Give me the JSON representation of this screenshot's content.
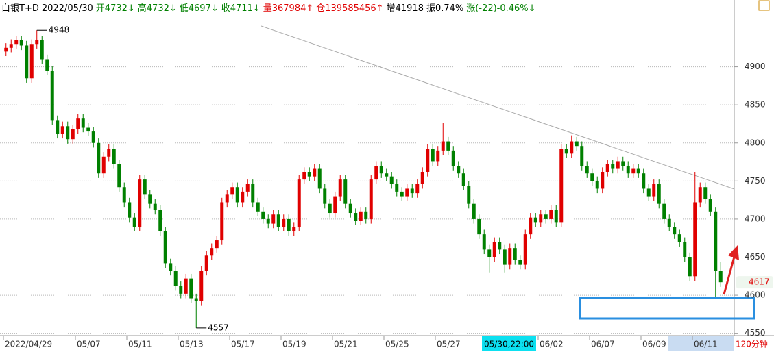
{
  "chart_data": {
    "type": "candlestick",
    "title": "白银T+D",
    "date": "2022/05/30",
    "header_items": [
      {
        "text": "开4732↓",
        "color": "#008000"
      },
      {
        "text": "高4732↓",
        "color": "#008000"
      },
      {
        "text": "低4697↓",
        "color": "#008000"
      },
      {
        "text": "收4711↓",
        "color": "#008000"
      },
      {
        "text": "量367984↑",
        "color": "#e00000"
      },
      {
        "text": "仓139585456↑",
        "color": "#e00000"
      },
      {
        "text": "增41918",
        "color": "#000000"
      },
      {
        "text": "振0.74%",
        "color": "#000000"
      },
      {
        "text": "涨(-22)-0.46%↓",
        "color": "#008000"
      }
    ],
    "up_color": "#e00000",
    "down_color": "#008000",
    "ylim": [
      4547,
      4968
    ],
    "yticks": [
      4550,
      4600,
      4650,
      4700,
      4750,
      4800,
      4850,
      4900
    ],
    "grid": true,
    "high_label": 4948,
    "low_label": 4557,
    "last_price": 4617,
    "crosshair_label": "05/30,22:00",
    "period": "120分钟",
    "categories": [
      "2022/04/29",
      null,
      null,
      null,
      null,
      null,
      null,
      null,
      null,
      null,
      null,
      null,
      null,
      null,
      "05/07",
      null,
      null,
      null,
      null,
      null,
      null,
      null,
      null,
      null,
      "05/11",
      null,
      null,
      null,
      null,
      null,
      null,
      null,
      null,
      null,
      "05/13",
      null,
      null,
      null,
      null,
      null,
      null,
      null,
      null,
      null,
      "05/17",
      null,
      null,
      null,
      null,
      null,
      null,
      null,
      null,
      null,
      "05/19",
      null,
      null,
      null,
      null,
      null,
      null,
      null,
      null,
      null,
      "05/21",
      null,
      null,
      null,
      null,
      null,
      null,
      null,
      null,
      null,
      "05/25",
      null,
      null,
      null,
      null,
      null,
      null,
      null,
      null,
      null,
      "05/27",
      null,
      null,
      null,
      null,
      null,
      null,
      null,
      null,
      null,
      null,
      null,
      null,
      null,
      null,
      null,
      null,
      null,
      null,
      null,
      "06/02",
      null,
      null,
      null,
      null,
      null,
      null,
      null,
      null,
      null,
      "06/07",
      null,
      null,
      null,
      null,
      null,
      null,
      null,
      null,
      null,
      "06/09",
      null,
      null,
      null,
      null,
      null,
      null,
      null,
      null,
      null,
      "06/11",
      null,
      null,
      null,
      null,
      null
    ],
    "ohlc": [
      [
        4920,
        4931,
        4914,
        4925
      ],
      [
        4925,
        4936,
        4919,
        4930
      ],
      [
        4930,
        4941,
        4924,
        4935
      ],
      [
        4935,
        4941,
        4922,
        4928
      ],
      [
        4928,
        4934,
        4879,
        4885
      ],
      [
        4885,
        4936,
        4879,
        4930
      ],
      [
        4930,
        4948,
        4924,
        4935
      ],
      [
        4935,
        4941,
        4904,
        4910
      ],
      [
        4910,
        4916,
        4889,
        4895
      ],
      [
        4895,
        4901,
        4824,
        4830
      ],
      [
        4830,
        4836,
        4806,
        4812
      ],
      [
        4812,
        4828,
        4806,
        4822
      ],
      [
        4822,
        4828,
        4799,
        4805
      ],
      [
        4805,
        4824,
        4799,
        4818
      ],
      [
        4818,
        4838,
        4812,
        4832
      ],
      [
        4832,
        4838,
        4814,
        4820
      ],
      [
        4820,
        4826,
        4809,
        4815
      ],
      [
        4815,
        4821,
        4794,
        4800
      ],
      [
        4800,
        4806,
        4754,
        4760
      ],
      [
        4760,
        4788,
        4754,
        4782
      ],
      [
        4782,
        4798,
        4776,
        4792
      ],
      [
        4792,
        4798,
        4766,
        4772
      ],
      [
        4772,
        4778,
        4736,
        4742
      ],
      [
        4742,
        4748,
        4716,
        4722
      ],
      [
        4722,
        4728,
        4696,
        4702
      ],
      [
        4702,
        4708,
        4684,
        4690
      ],
      [
        4690,
        4758,
        4684,
        4752
      ],
      [
        4752,
        4758,
        4726,
        4732
      ],
      [
        4732,
        4738,
        4714,
        4720
      ],
      [
        4720,
        4726,
        4706,
        4712
      ],
      [
        4712,
        4718,
        4678,
        4684
      ],
      [
        4684,
        4690,
        4636,
        4642
      ],
      [
        4642,
        4648,
        4626,
        4632
      ],
      [
        4632,
        4638,
        4606,
        4612
      ],
      [
        4612,
        4618,
        4596,
        4602
      ],
      [
        4602,
        4628,
        4596,
        4622
      ],
      [
        4622,
        4628,
        4590,
        4596
      ],
      [
        4596,
        4602,
        4557,
        4592
      ],
      [
        4592,
        4638,
        4586,
        4632
      ],
      [
        4632,
        4658,
        4626,
        4652
      ],
      [
        4652,
        4668,
        4646,
        4662
      ],
      [
        4662,
        4678,
        4656,
        4672
      ],
      [
        4672,
        4728,
        4666,
        4722
      ],
      [
        4722,
        4738,
        4716,
        4732
      ],
      [
        4732,
        4748,
        4726,
        4742
      ],
      [
        4742,
        4748,
        4716,
        4722
      ],
      [
        4722,
        4742,
        4716,
        4736
      ],
      [
        4736,
        4752,
        4730,
        4746
      ],
      [
        4746,
        4752,
        4716,
        4722
      ],
      [
        4722,
        4728,
        4704,
        4710
      ],
      [
        4710,
        4716,
        4694,
        4700
      ],
      [
        4700,
        4706,
        4688,
        4694
      ],
      [
        4694,
        4712,
        4688,
        4706
      ],
      [
        4706,
        4712,
        4684,
        4690
      ],
      [
        4690,
        4706,
        4684,
        4700
      ],
      [
        4700,
        4706,
        4678,
        4684
      ],
      [
        4684,
        4696,
        4678,
        4690
      ],
      [
        4690,
        4758,
        4684,
        4752
      ],
      [
        4752,
        4768,
        4746,
        4762
      ],
      [
        4762,
        4768,
        4750,
        4756
      ],
      [
        4756,
        4772,
        4750,
        4766
      ],
      [
        4766,
        4772,
        4734,
        4740
      ],
      [
        4740,
        4746,
        4714,
        4720
      ],
      [
        4720,
        4726,
        4702,
        4708
      ],
      [
        4708,
        4736,
        4702,
        4730
      ],
      [
        4730,
        4758,
        4724,
        4752
      ],
      [
        4752,
        4758,
        4714,
        4720
      ],
      [
        4720,
        4726,
        4702,
        4708
      ],
      [
        4708,
        4714,
        4692,
        4698
      ],
      [
        4698,
        4716,
        4692,
        4710
      ],
      [
        4710,
        4716,
        4694,
        4700
      ],
      [
        4700,
        4758,
        4694,
        4752
      ],
      [
        4752,
        4776,
        4746,
        4770
      ],
      [
        4770,
        4776,
        4754,
        4760
      ],
      [
        4760,
        4766,
        4750,
        4756
      ],
      [
        4756,
        4762,
        4740,
        4746
      ],
      [
        4746,
        4752,
        4730,
        4736
      ],
      [
        4736,
        4742,
        4724,
        4730
      ],
      [
        4730,
        4746,
        4724,
        4740
      ],
      [
        4740,
        4746,
        4728,
        4734
      ],
      [
        4734,
        4752,
        4728,
        4746
      ],
      [
        4746,
        4768,
        4740,
        4762
      ],
      [
        4762,
        4798,
        4756,
        4792
      ],
      [
        4792,
        4798,
        4770,
        4776
      ],
      [
        4776,
        4796,
        4770,
        4790
      ],
      [
        4790,
        4826,
        4784,
        4802
      ],
      [
        4802,
        4808,
        4784,
        4790
      ],
      [
        4790,
        4796,
        4764,
        4770
      ],
      [
        4770,
        4776,
        4754,
        4760
      ],
      [
        4760,
        4766,
        4738,
        4744
      ],
      [
        4744,
        4750,
        4714,
        4720
      ],
      [
        4720,
        4726,
        4694,
        4700
      ],
      [
        4700,
        4706,
        4674,
        4680
      ],
      [
        4680,
        4686,
        4654,
        4660
      ],
      [
        4660,
        4666,
        4630,
        4650
      ],
      [
        4650,
        4676,
        4644,
        4670
      ],
      [
        4670,
        4676,
        4654,
        4660
      ],
      [
        4660,
        4666,
        4630,
        4640
      ],
      [
        4640,
        4668,
        4634,
        4662
      ],
      [
        4662,
        4668,
        4640,
        4646
      ],
      [
        4646,
        4652,
        4634,
        4640
      ],
      [
        4640,
        4686,
        4634,
        4680
      ],
      [
        4680,
        4708,
        4674,
        4702
      ],
      [
        4702,
        4708,
        4690,
        4696
      ],
      [
        4696,
        4712,
        4690,
        4706
      ],
      [
        4706,
        4712,
        4694,
        4700
      ],
      [
        4700,
        4718,
        4694,
        4712
      ],
      [
        4712,
        4718,
        4690,
        4696
      ],
      [
        4696,
        4798,
        4690,
        4792
      ],
      [
        4792,
        4798,
        4780,
        4786
      ],
      [
        4786,
        4810,
        4780,
        4802
      ],
      [
        4802,
        4808,
        4790,
        4796
      ],
      [
        4796,
        4802,
        4764,
        4770
      ],
      [
        4770,
        4776,
        4754,
        4760
      ],
      [
        4760,
        4766,
        4744,
        4750
      ],
      [
        4750,
        4756,
        4734,
        4740
      ],
      [
        4740,
        4768,
        4734,
        4762
      ],
      [
        4762,
        4778,
        4756,
        4772
      ],
      [
        4772,
        4778,
        4760,
        4766
      ],
      [
        4766,
        4782,
        4760,
        4776
      ],
      [
        4776,
        4782,
        4764,
        4770
      ],
      [
        4770,
        4776,
        4754,
        4760
      ],
      [
        4760,
        4772,
        4754,
        4766
      ],
      [
        4766,
        4772,
        4754,
        4760
      ],
      [
        4760,
        4766,
        4734,
        4740
      ],
      [
        4740,
        4746,
        4724,
        4730
      ],
      [
        4730,
        4752,
        4724,
        4746
      ],
      [
        4746,
        4752,
        4714,
        4720
      ],
      [
        4720,
        4726,
        4694,
        4700
      ],
      [
        4700,
        4706,
        4684,
        4690
      ],
      [
        4690,
        4696,
        4674,
        4680
      ],
      [
        4680,
        4686,
        4664,
        4670
      ],
      [
        4670,
        4676,
        4644,
        4650
      ],
      [
        4650,
        4656,
        4619,
        4625
      ],
      [
        4625,
        4762,
        4619,
        4722
      ],
      [
        4722,
        4748,
        4716,
        4742
      ],
      [
        4742,
        4748,
        4720,
        4726
      ],
      [
        4726,
        4732,
        4704,
        4710
      ],
      [
        4710,
        4716,
        4598,
        4632
      ],
      [
        4632,
        4644,
        4611,
        4617
      ]
    ]
  }
}
